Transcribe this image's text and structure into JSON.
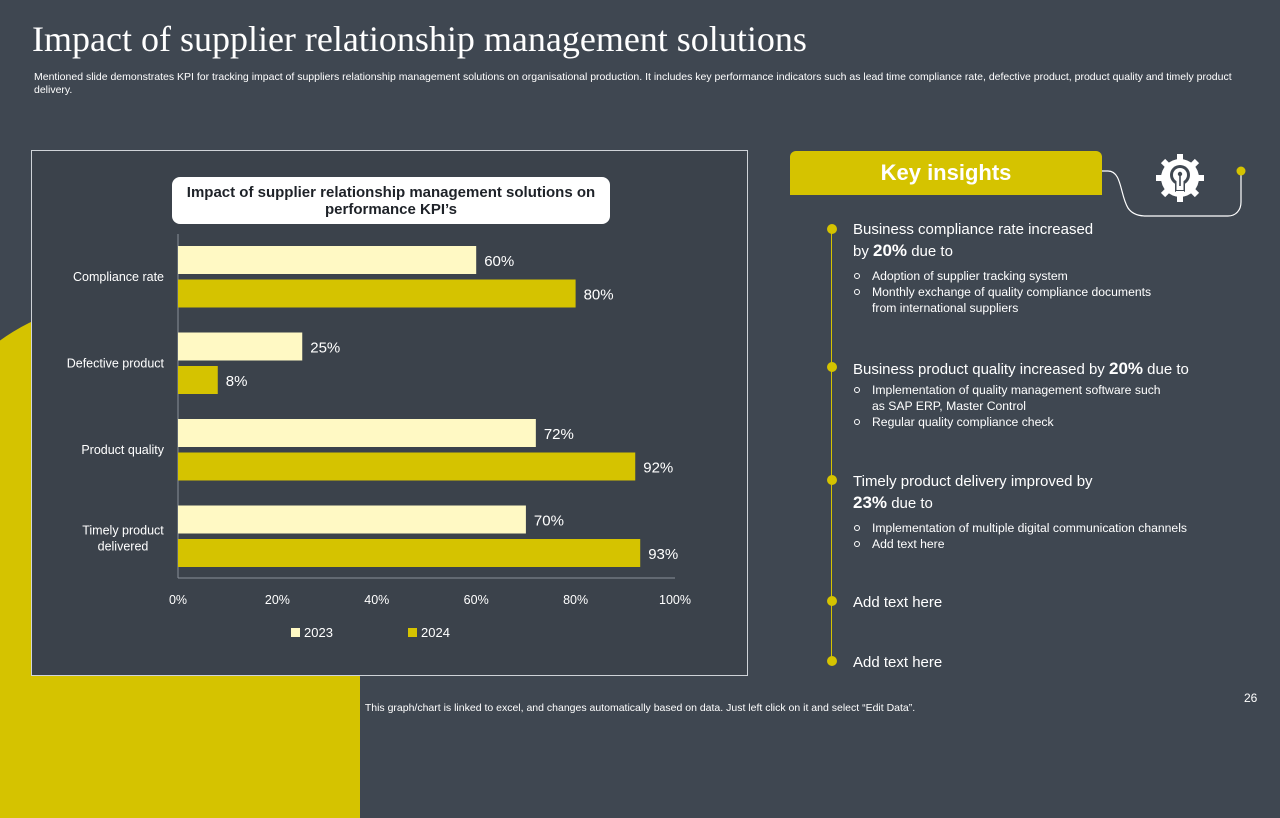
{
  "slide": {
    "title": "Impact of supplier relationship management solutions",
    "subtitle": "Mentioned slide demonstrates KPI for tracking impact of suppliers relationship management solutions on organisational production. It includes key performance indicators such as lead time compliance rate, defective product, product quality and timely product delivery.",
    "footer": "This graph/chart is linked to excel,  and changes automatically based on data. Just left click on it and select “Edit Data”.",
    "page_number": "26"
  },
  "colors": {
    "background": "#3f4751",
    "accent": "#d5c300",
    "series_2023": "#fff9c4",
    "series_2024": "#d5c300"
  },
  "chart_data": {
    "type": "bar",
    "orientation": "horizontal",
    "title": "Impact of supplier relationship management solutions on performance KPI’s",
    "categories": [
      "Compliance rate",
      "Defective product",
      "Product quality",
      "Timely product delivered"
    ],
    "series": [
      {
        "name": "2023",
        "values": [
          60,
          25,
          72,
          70
        ]
      },
      {
        "name": "2024",
        "values": [
          80,
          8,
          92,
          93
        ]
      }
    ],
    "value_labels": {
      "2023": [
        "60%",
        "25%",
        "72%",
        "70%"
      ],
      "2024": [
        "80%",
        "8%",
        "92%",
        "93%"
      ]
    },
    "x_ticks": [
      "0%",
      "20%",
      "40%",
      "60%",
      "80%",
      "100%"
    ],
    "xlim": [
      0,
      100
    ],
    "xlabel": "",
    "ylabel": "",
    "grid": false,
    "legend": "bottom"
  },
  "insights": {
    "header": "Key insights",
    "icon": "lightbulb-gear-icon",
    "items": [
      {
        "head_before": "Business compliance rate increased",
        "head_line2_before": "by ",
        "highlight": "20%",
        "head_after": " due to",
        "bullets": [
          "Adoption of supplier tracking system",
          "Monthly exchange of quality compliance documents",
          "from international  suppliers"
        ]
      },
      {
        "head_before": "Business product quality increased by ",
        "highlight": "20%",
        "head_after": " due to",
        "bullets": [
          "Implementation  of  quality  management  software  such",
          "as SAP ERP, Master Control",
          "Regular  quality  compliance  check"
        ]
      },
      {
        "head_before": "Timely product delivery improved by",
        "highlight": "23%",
        "head_after": " due to",
        "bullets": [
          "Implementation  of  multiple  digital  communication  channels",
          "Add text here"
        ]
      },
      {
        "head": "Add text here"
      },
      {
        "head": "Add text here"
      }
    ]
  }
}
